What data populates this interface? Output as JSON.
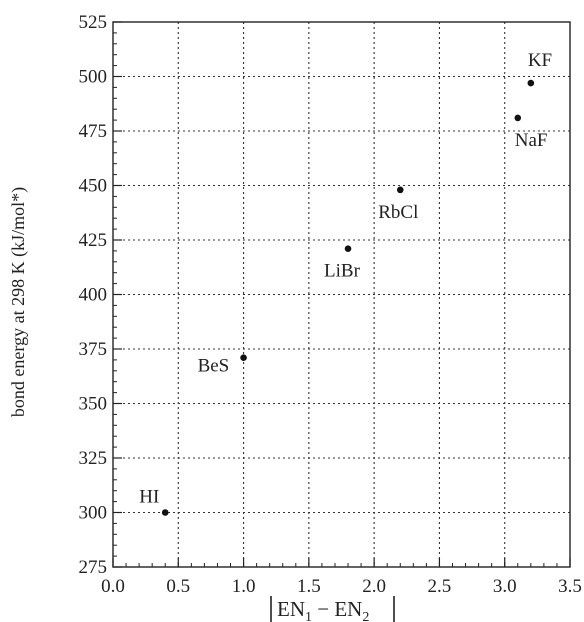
{
  "chart_data": {
    "type": "scatter",
    "title": "",
    "ylabel": "bond energy at 298 K (kJ/mol*)",
    "xlabel": {
      "main": "EN",
      "sub1": "1",
      "minus": " − EN",
      "sub2": "2"
    },
    "xlim": [
      0.0,
      3.5
    ],
    "ylim": [
      275,
      525
    ],
    "xticks": [
      "0.0",
      "0.5",
      "1.0",
      "1.5",
      "2.0",
      "2.5",
      "3.0",
      "3.5"
    ],
    "yticks": [
      "275",
      "300",
      "325",
      "350",
      "375",
      "400",
      "425",
      "450",
      "475",
      "500",
      "525"
    ],
    "grid": true,
    "points": [
      {
        "label": "HI",
        "x": 0.4,
        "y": 300
      },
      {
        "label": "BeS",
        "x": 1.0,
        "y": 371
      },
      {
        "label": "LiBr",
        "x": 1.8,
        "y": 421
      },
      {
        "label": "RbCl",
        "x": 2.2,
        "y": 448
      },
      {
        "label": "NaF",
        "x": 3.1,
        "y": 481
      },
      {
        "label": "KF",
        "x": 3.2,
        "y": 497
      }
    ]
  }
}
